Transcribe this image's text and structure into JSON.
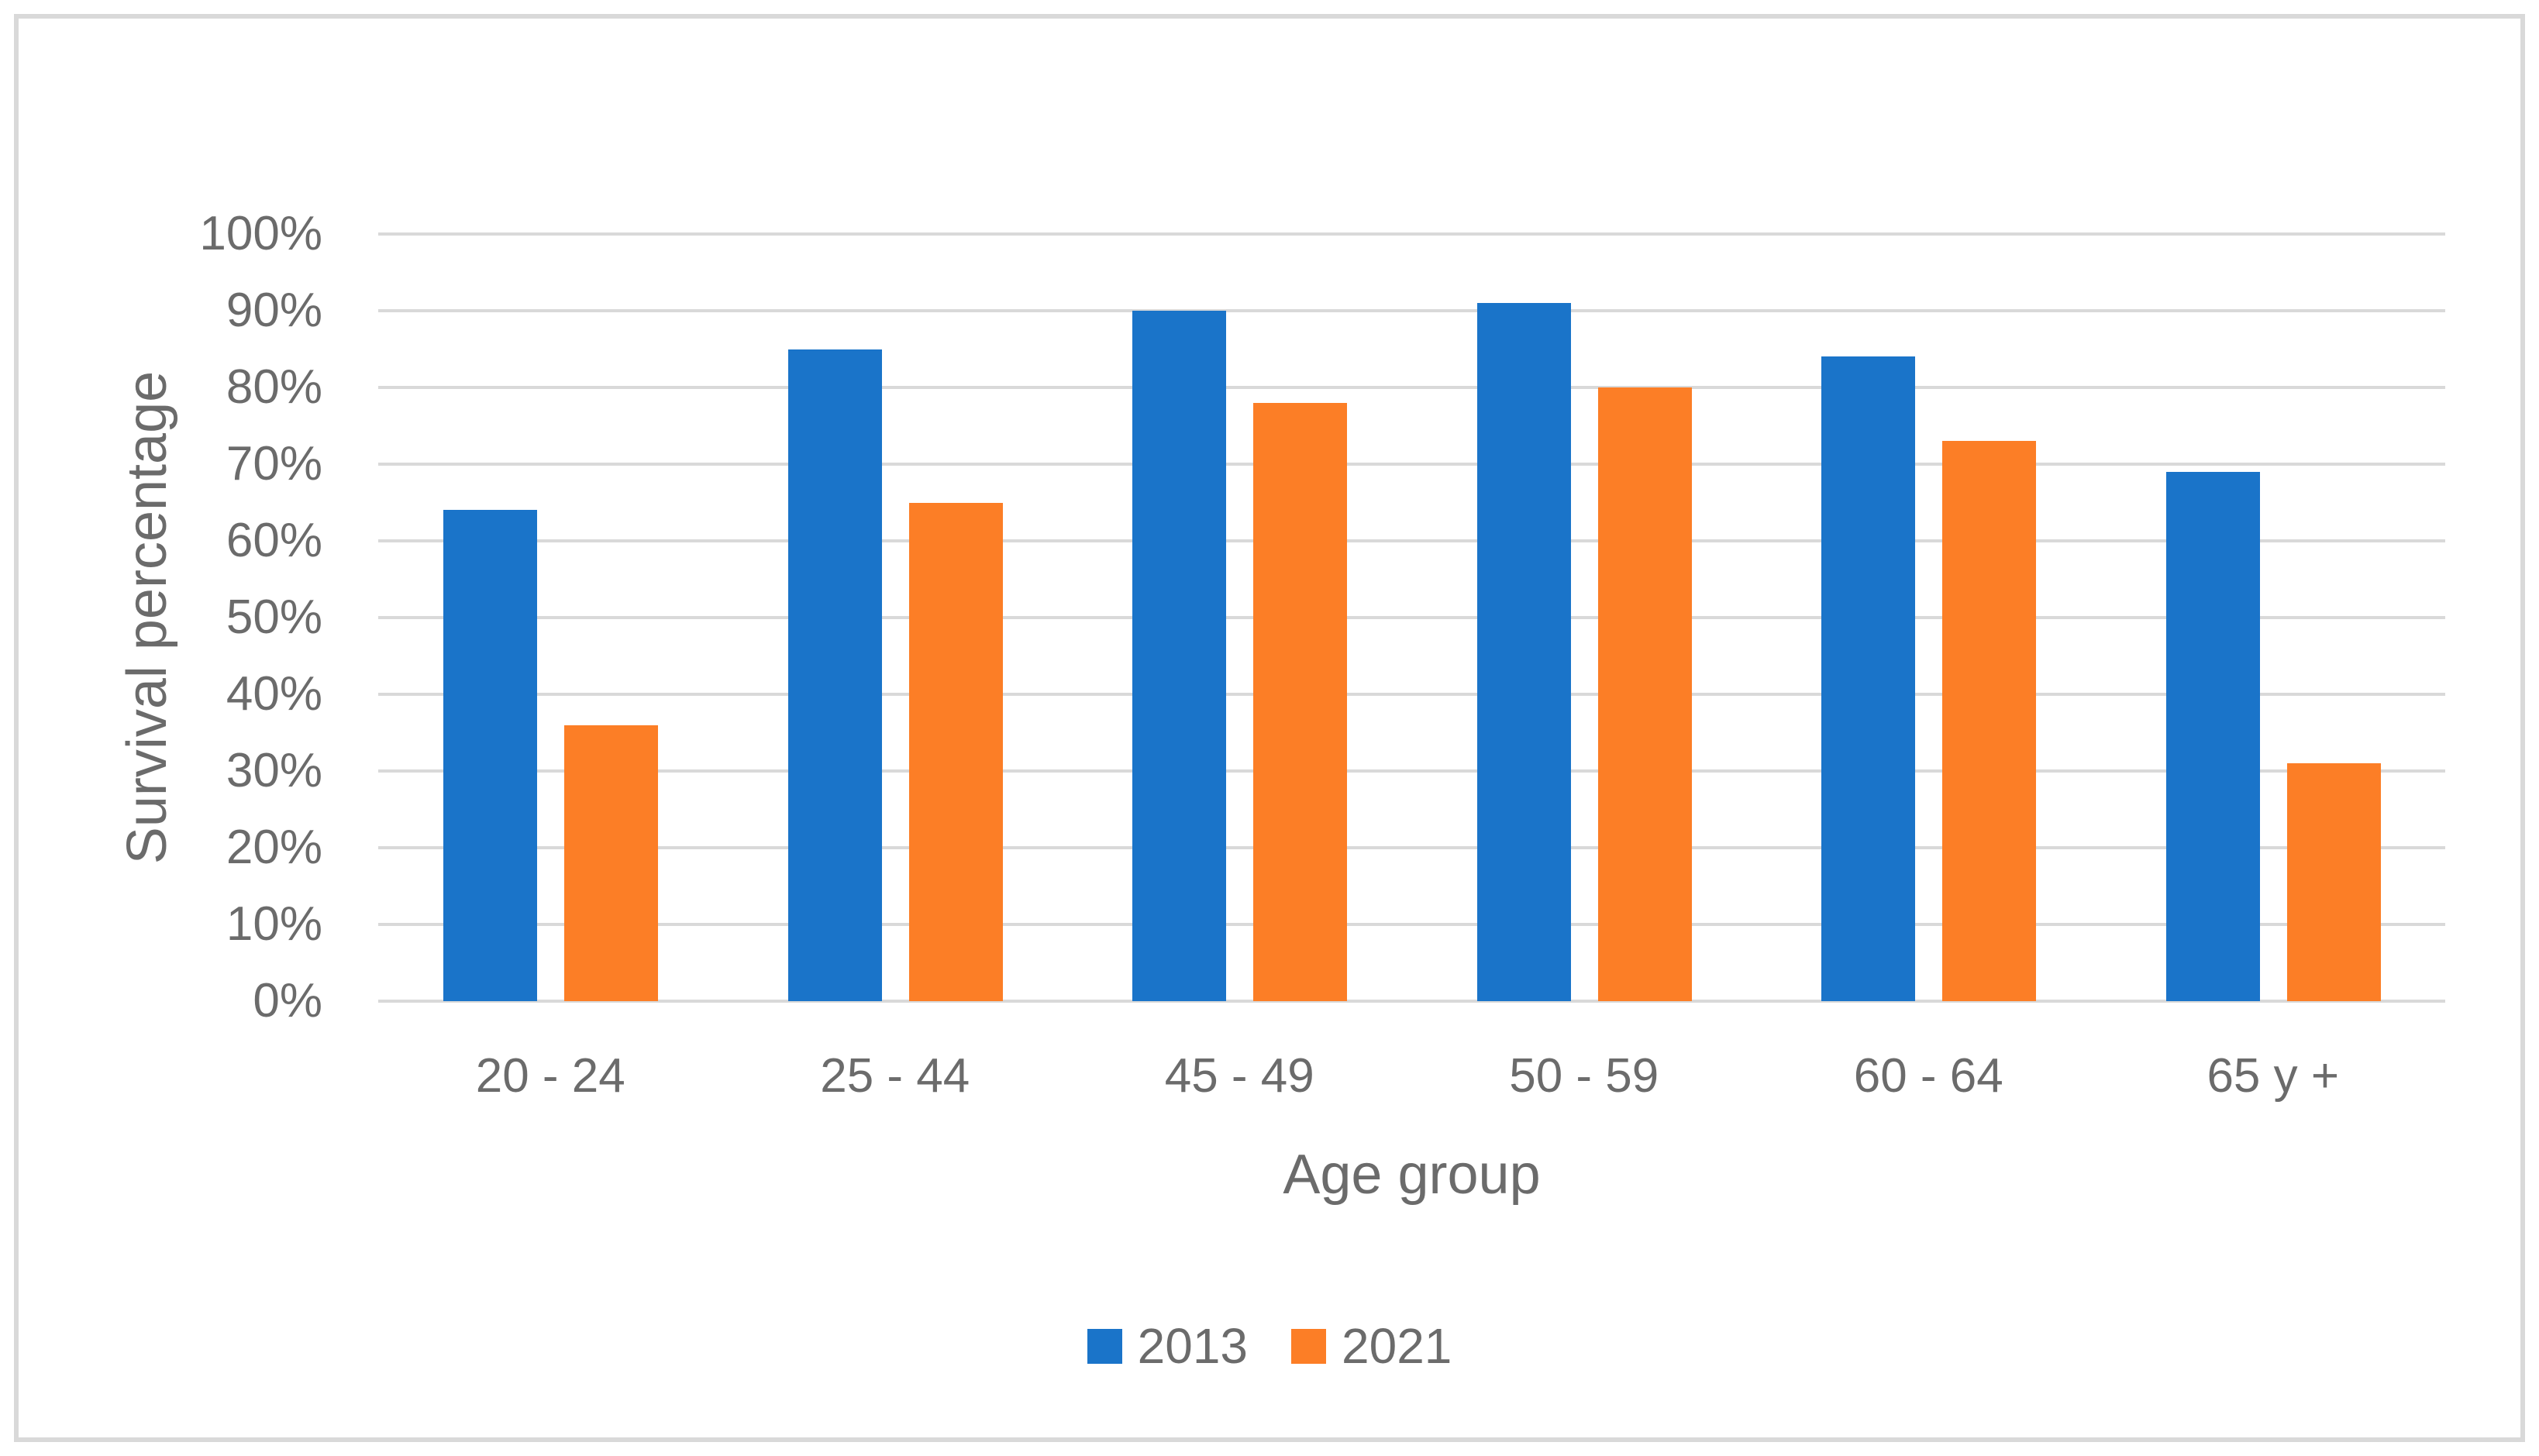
{
  "chart_data": {
    "type": "bar",
    "title": "",
    "categories": [
      "20 - 24",
      "25 - 44",
      "45 - 49",
      "50 - 59",
      "60 - 64",
      "65 y +"
    ],
    "series": [
      {
        "name": "2013",
        "color": "#1a74c9",
        "values": [
          64,
          85,
          90,
          91,
          84,
          69
        ]
      },
      {
        "name": "2021",
        "color": "#fc7e26",
        "values": [
          36,
          65,
          78,
          80,
          73,
          31
        ]
      }
    ],
    "xlabel": "Age group",
    "ylabel": "Survival percentage",
    "ylim": [
      0,
      100
    ],
    "ytick_step": 10,
    "ytick_labels": [
      "0%",
      "10%",
      "20%",
      "30%",
      "40%",
      "50%",
      "60%",
      "70%",
      "80%",
      "90%",
      "100%"
    ],
    "grid": "horizontal-only",
    "legend_position": "bottom-center"
  },
  "styles": {
    "background": "#ffffff",
    "border_color": "#d9d9d9",
    "grid_color": "#d9d9d9",
    "text_color": "#6b6b6b"
  }
}
